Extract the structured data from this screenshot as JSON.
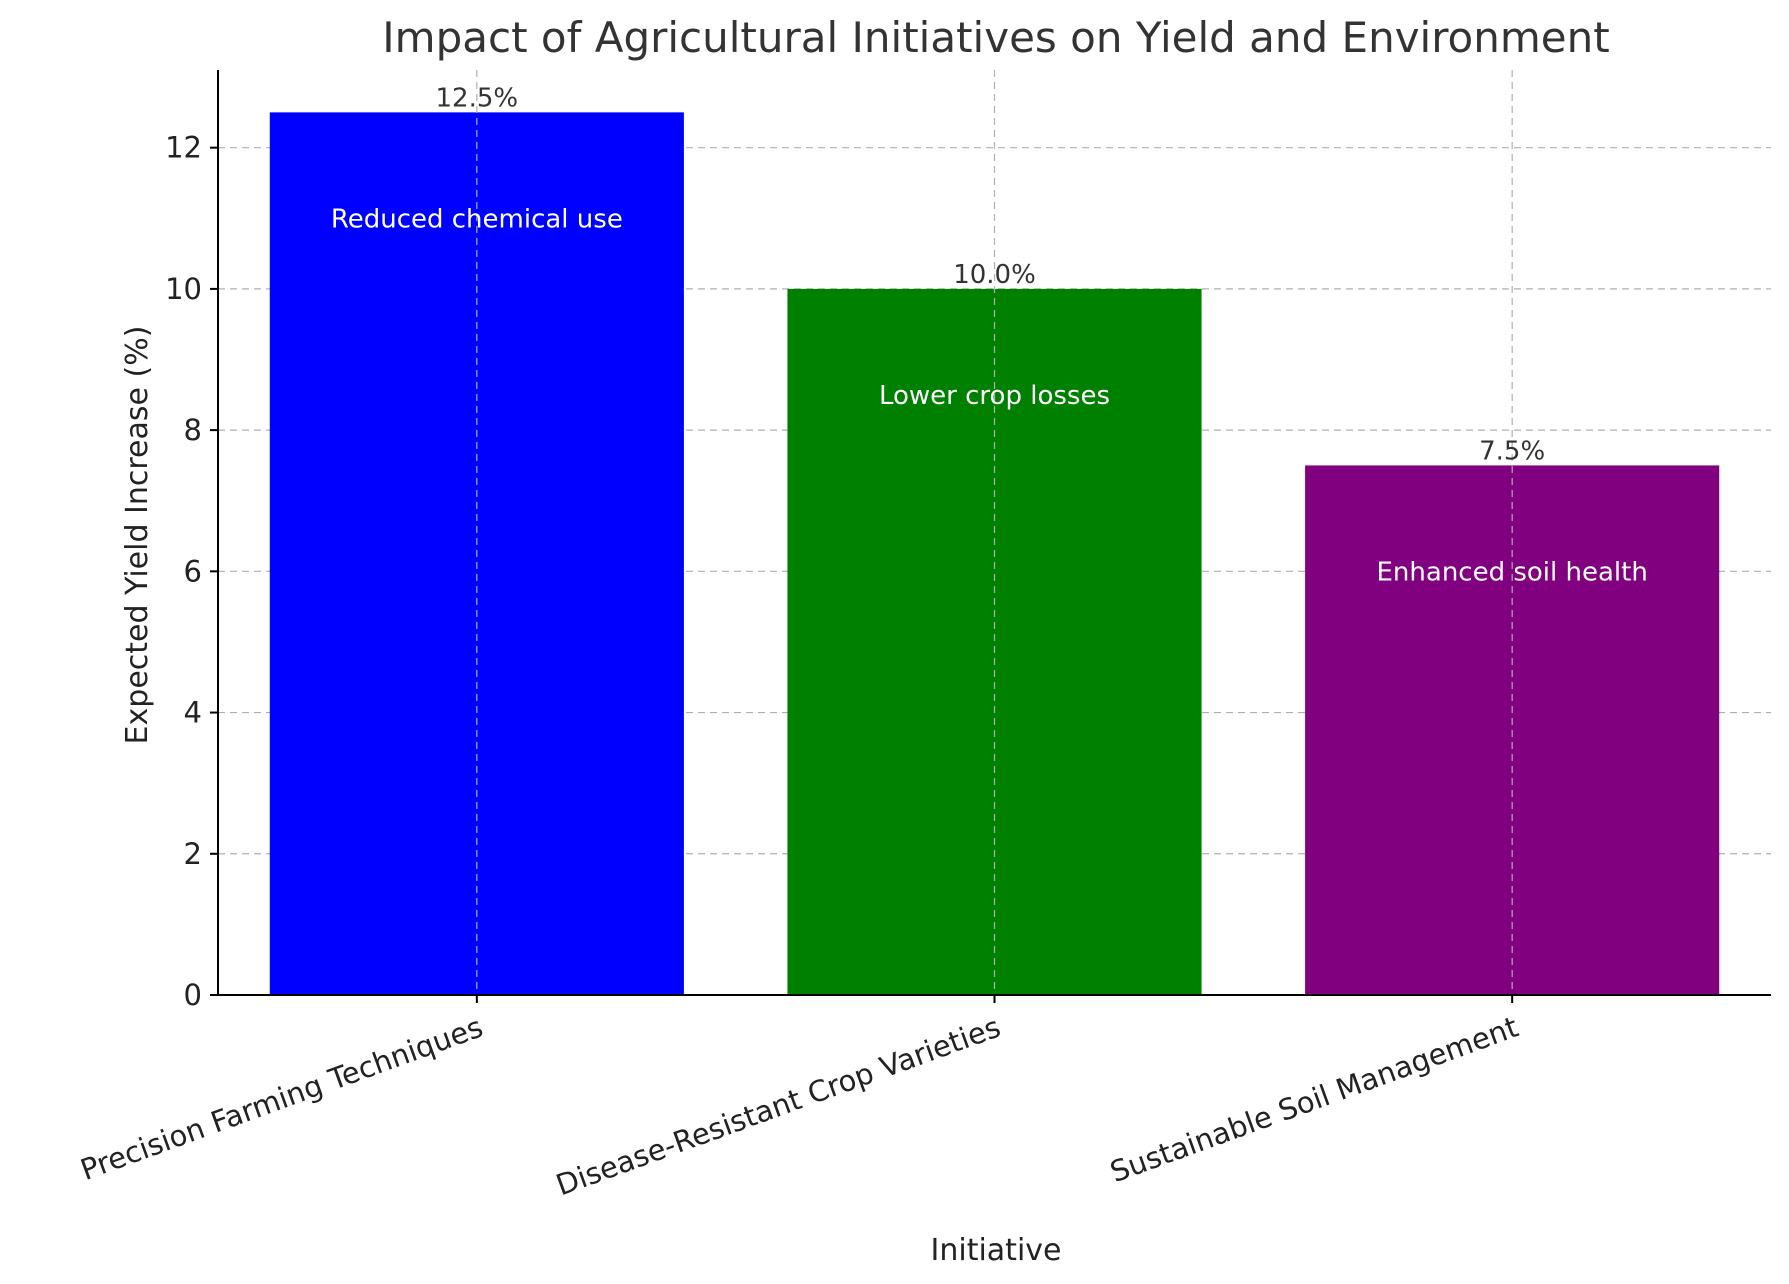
{
  "chart_data": {
    "type": "bar",
    "title": "Impact of Agricultural Initiatives on Yield and Environment",
    "xlabel": "Initiative",
    "ylabel": "Expected Yield Increase (%)",
    "ylim": [
      0,
      13.1
    ],
    "yticks": [
      "0",
      "2",
      "4",
      "6",
      "8",
      "10",
      "12"
    ],
    "grid": true,
    "categories": [
      "Precision Farming Techniques",
      "Disease-Resistant Crop Varieties",
      "Sustainable Soil Management"
    ],
    "values": [
      12.5,
      10.0,
      7.5
    ],
    "value_labels": [
      "12.5%",
      "10.0%",
      "7.5%"
    ],
    "annotations": [
      "Reduced chemical use",
      "Lower crop losses",
      "Enhanced soil health"
    ],
    "colors": [
      "#0000ff",
      "#008000",
      "#800080"
    ]
  }
}
